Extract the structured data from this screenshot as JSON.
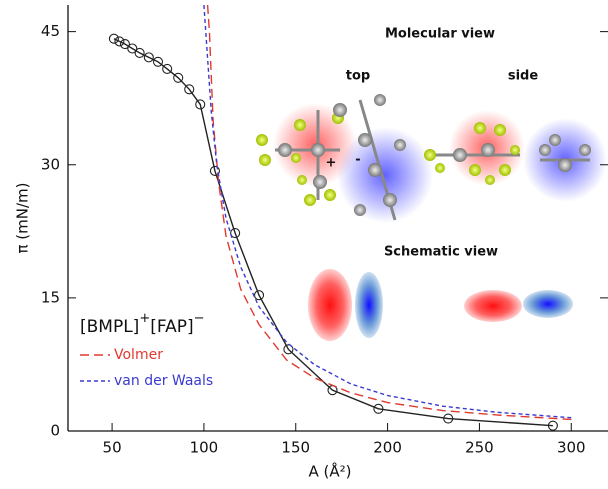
{
  "chart_data": {
    "type": "line",
    "x_label": "A (Å²)",
    "y_label": "π (mN/m)",
    "xlim": [
      26,
      320
    ],
    "ylim": [
      0,
      48
    ],
    "xticks": [
      50,
      100,
      150,
      200,
      250,
      300
    ],
    "yticks": [
      0,
      15,
      30,
      45
    ],
    "series": [
      {
        "color": "#222222",
        "style": "solid",
        "markers": true,
        "x": [
          51,
          54,
          57,
          61,
          65,
          70,
          75,
          80,
          86,
          92,
          98,
          106,
          117,
          130,
          146,
          170,
          195,
          233,
          290
        ],
        "values": [
          44.2,
          43.9,
          43.6,
          43.1,
          42.6,
          42.1,
          41.6,
          40.8,
          39.8,
          38.5,
          36.8,
          29.3,
          22.3,
          15.3,
          9.2,
          4.6,
          2.5,
          1.4,
          0.6
        ]
      },
      {
        "name": "Volmer",
        "color": "#e03a30",
        "style": "dashed",
        "markers": false,
        "x": [
          102,
          103,
          105,
          108,
          112,
          120,
          130,
          145,
          160,
          180,
          200,
          230,
          260,
          300
        ],
        "values": [
          48,
          45,
          35,
          28,
          22,
          16,
          12,
          8,
          6,
          4.3,
          3.2,
          2.3,
          1.8,
          1.3
        ]
      },
      {
        "name": "van der Waals",
        "color": "#3a3ad0",
        "style": "dotted",
        "markers": false,
        "x": [
          100,
          101,
          104,
          107,
          112,
          120,
          130,
          145,
          160,
          180,
          200,
          230,
          260,
          300
        ],
        "values": [
          48,
          45,
          36,
          30,
          24,
          18.5,
          14,
          10,
          7.5,
          5.3,
          4,
          2.8,
          2.1,
          1.5
        ]
      }
    ],
    "annotations": {
      "molecular_view": "Molecular view",
      "top": "top",
      "side": "side",
      "schematic_view": "Schematic view",
      "plus": "+",
      "minus": "-",
      "cation": "[BMPL]",
      "cation_charge": "+",
      "anion": "[FAP]",
      "anion_charge": "−"
    }
  }
}
